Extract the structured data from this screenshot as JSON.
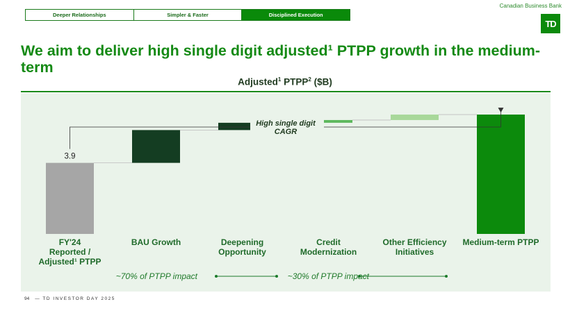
{
  "tabs": [
    {
      "label": "Deeper Relationships",
      "active": false
    },
    {
      "label": "Simpler & Faster",
      "active": false
    },
    {
      "label": "Disciplined Execution",
      "active": true
    }
  ],
  "brand": {
    "name": "Canadian Business Bank",
    "logo_text": "TD"
  },
  "headline": "We aim to deliver high single digit adjusted¹ PTPP growth in the medium-term",
  "chart_title": {
    "main": "Adjusted",
    "sup1": "1",
    "mid": " PTPP",
    "sup2": "2",
    "tail": " ($B)"
  },
  "chart_data": {
    "type": "waterfall",
    "categories": [
      [
        "FY'24",
        "Reported /",
        "Adjusted¹ PTPP"
      ],
      [
        "BAU Growth"
      ],
      [
        "Deepening",
        "Opportunity"
      ],
      [
        "Credit",
        "Modernization"
      ],
      [
        "Other Efficiency",
        "Initiatives"
      ],
      [
        "Medium-term PTPP"
      ]
    ],
    "bars": [
      {
        "start": 0,
        "end": 3.9,
        "color": "#a6a6a6",
        "label": "3.9"
      },
      {
        "start": 3.9,
        "end": 5.7,
        "color": "#143d22",
        "label": ""
      },
      {
        "start": 5.7,
        "end": 6.1,
        "color": "#143d22",
        "label": ""
      },
      {
        "start": 6.1,
        "end": 6.25,
        "color": "#5cb85c",
        "label": ""
      },
      {
        "start": 6.25,
        "end": 6.55,
        "color": "#a8d89a",
        "label": ""
      },
      {
        "start": 0,
        "end": 6.55,
        "color": "#0c8a0c",
        "label": ""
      }
    ],
    "ylim": [
      0,
      7.2
    ],
    "cagr_annotation": [
      "High single digit",
      "CAGR"
    ],
    "impact_notes": [
      {
        "text": "~70% of PTPP impact"
      },
      {
        "text": "~30% of PTPP impact"
      }
    ]
  },
  "footer": {
    "page": "94",
    "text": "— TD INVESTOR DAY 2025"
  },
  "colors": {
    "brand_green": "#0c8a0c",
    "headline": "#158a15",
    "dark_green": "#143d22",
    "panel": "#eaf3ea"
  }
}
